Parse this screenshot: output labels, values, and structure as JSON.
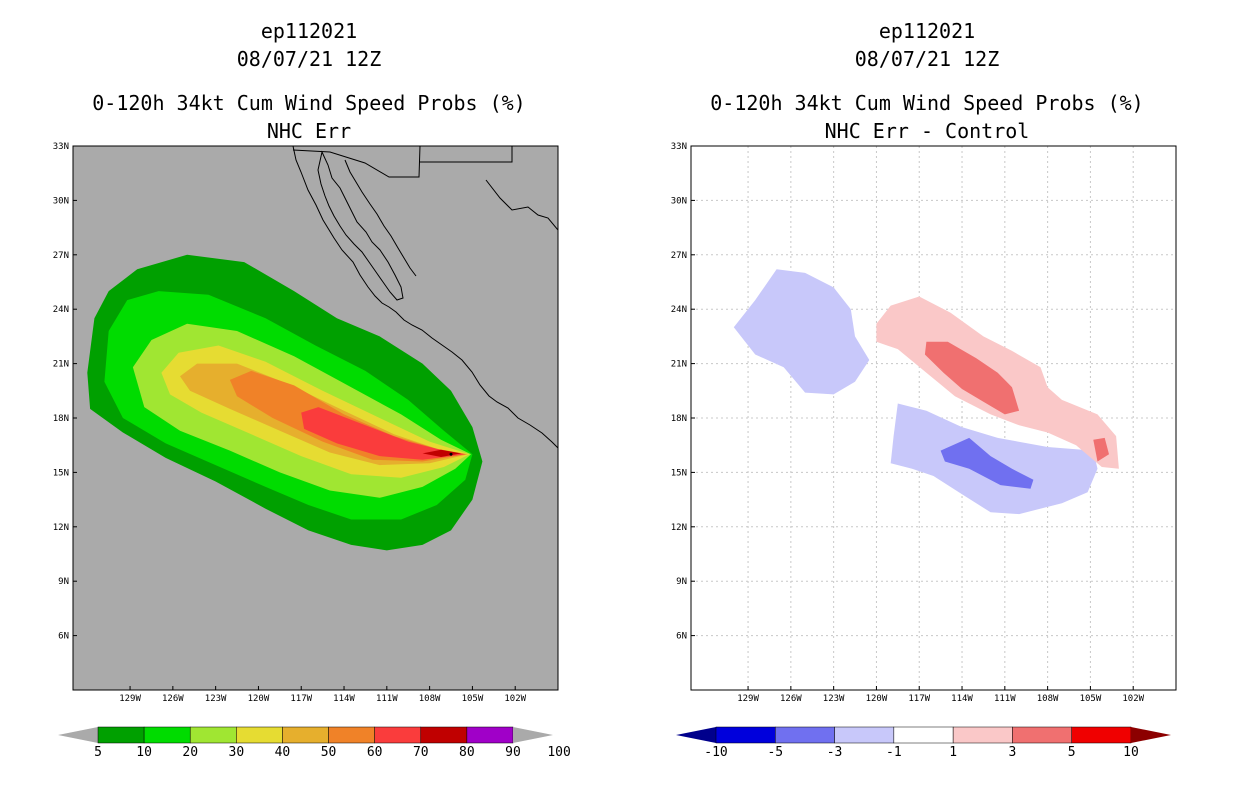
{
  "chart_data": [
    {
      "type": "heatmap",
      "storm_id": "ep112021",
      "datetime": "08/07/21 12Z",
      "title": "0-120h 34kt Cum Wind Speed Probs (%)",
      "subtitle": "NHC Err",
      "x_range_lon": [
        -133,
        -99
      ],
      "y_range_lat": [
        3,
        33
      ],
      "x_ticks": [
        "129W",
        "126W",
        "123W",
        "120W",
        "117W",
        "114W",
        "111W",
        "108W",
        "105W",
        "102W"
      ],
      "y_ticks": [
        "33N",
        "30N",
        "27N",
        "24N",
        "21N",
        "18N",
        "15N",
        "12N",
        "9N",
        "6N"
      ],
      "background_color": "#aaaaaa",
      "levels": [
        5,
        10,
        20,
        30,
        40,
        50,
        60,
        70,
        80,
        90,
        100
      ],
      "colors": [
        "#00a000",
        "#00dc00",
        "#a0e632",
        "#e6dc32",
        "#e6af2d",
        "#f08228",
        "#fa3c3c",
        "#c00000",
        "#a000c8"
      ],
      "colorbar_labels": [
        "5",
        "10",
        "20",
        "30",
        "40",
        "50",
        "60",
        "70",
        "80",
        "90",
        "100"
      ],
      "storm_center_lon": -106.5,
      "storm_center_lat": 16.0,
      "contours": [
        {
          "level": 5,
          "color": "#00a000",
          "polygon": [
            [
              -131.5,
              23.5
            ],
            [
              -130.5,
              25
            ],
            [
              -128.5,
              26.2
            ],
            [
              -125,
              27
            ],
            [
              -121,
              26.6
            ],
            [
              -117.5,
              25
            ],
            [
              -114.5,
              23.5
            ],
            [
              -111.5,
              22.5
            ],
            [
              -108.5,
              21
            ],
            [
              -106.5,
              19.5
            ],
            [
              -105,
              17.5
            ],
            [
              -104.3,
              15.6
            ],
            [
              -105,
              13.5
            ],
            [
              -106.5,
              11.8
            ],
            [
              -108.5,
              11
            ],
            [
              -111,
              10.7
            ],
            [
              -113.5,
              11
            ],
            [
              -116.5,
              11.8
            ],
            [
              -119.5,
              13
            ],
            [
              -123,
              14.5
            ],
            [
              -126.5,
              15.8
            ],
            [
              -129.5,
              17.2
            ],
            [
              -131.8,
              18.5
            ],
            [
              -132,
              20.5
            ]
          ]
        },
        {
          "level": 10,
          "color": "#00dc00",
          "polygon": [
            [
              -130.5,
              22.8
            ],
            [
              -129.2,
              24.5
            ],
            [
              -127,
              25
            ],
            [
              -123.5,
              24.8
            ],
            [
              -119.5,
              23.5
            ],
            [
              -116,
              22
            ],
            [
              -112.5,
              20.6
            ],
            [
              -109.5,
              19
            ],
            [
              -107,
              17.3
            ],
            [
              -105,
              16
            ],
            [
              -105.5,
              14.6
            ],
            [
              -107.5,
              13.2
            ],
            [
              -110,
              12.4
            ],
            [
              -113.5,
              12.4
            ],
            [
              -116.5,
              13.2
            ],
            [
              -119.5,
              14.2
            ],
            [
              -123,
              15.4
            ],
            [
              -126.5,
              16.6
            ],
            [
              -129.5,
              18
            ],
            [
              -130.8,
              20
            ]
          ]
        },
        {
          "level": 20,
          "color": "#a0e632",
          "polygon": [
            [
              -128.8,
              20.8
            ],
            [
              -127.5,
              22.3
            ],
            [
              -125,
              23.2
            ],
            [
              -121.5,
              22.8
            ],
            [
              -117.5,
              21.4
            ],
            [
              -113.5,
              19.7
            ],
            [
              -110,
              18.2
            ],
            [
              -107.2,
              16.8
            ],
            [
              -105.1,
              16
            ],
            [
              -106.2,
              15.2
            ],
            [
              -108.5,
              14.2
            ],
            [
              -111.5,
              13.6
            ],
            [
              -115,
              14
            ],
            [
              -118.5,
              15
            ],
            [
              -122,
              16.2
            ],
            [
              -125.5,
              17.3
            ],
            [
              -128,
              18.6
            ]
          ]
        },
        {
          "level": 30,
          "color": "#e6dc32",
          "polygon": [
            [
              -126.8,
              20.5
            ],
            [
              -125.6,
              21.6
            ],
            [
              -122.8,
              22
            ],
            [
              -119.5,
              21.1
            ],
            [
              -115.5,
              19.5
            ],
            [
              -111.5,
              18
            ],
            [
              -108,
              16.7
            ],
            [
              -105.2,
              16
            ],
            [
              -107,
              15.3
            ],
            [
              -110,
              14.7
            ],
            [
              -113.5,
              14.9
            ],
            [
              -117,
              15.9
            ],
            [
              -120.5,
              17.1
            ],
            [
              -124,
              18.3
            ],
            [
              -126.2,
              19.3
            ]
          ]
        },
        {
          "level": 40,
          "color": "#e6af2d",
          "polygon": [
            [
              -125.5,
              20.3
            ],
            [
              -124.3,
              21
            ],
            [
              -121.5,
              21
            ],
            [
              -118,
              19.9
            ],
            [
              -114,
              18.4
            ],
            [
              -110.5,
              17.1
            ],
            [
              -107.5,
              16.3
            ],
            [
              -105.3,
              16
            ],
            [
              -108,
              15.5
            ],
            [
              -111.5,
              15.4
            ],
            [
              -115,
              16.1
            ],
            [
              -118.5,
              17.3
            ],
            [
              -122,
              18.5
            ],
            [
              -124.8,
              19.5
            ]
          ]
        },
        {
          "level": 50,
          "color": "#f08228",
          "polygon": [
            [
              -122,
              20.1
            ],
            [
              -120.5,
              20.6
            ],
            [
              -117.5,
              19.8
            ],
            [
              -114,
              18.2
            ],
            [
              -110.5,
              17
            ],
            [
              -107.5,
              16.3
            ],
            [
              -105.4,
              16
            ],
            [
              -108.5,
              15.6
            ],
            [
              -112,
              15.7
            ],
            [
              -115.5,
              16.7
            ],
            [
              -119,
              18
            ],
            [
              -121.5,
              19.2
            ]
          ]
        },
        {
          "level": 60,
          "color": "#fa3c3c",
          "polygon": [
            [
              -117,
              18.3
            ],
            [
              -115.8,
              18.6
            ],
            [
              -112.5,
              17.6
            ],
            [
              -109.5,
              16.7
            ],
            [
              -107,
              16.2
            ],
            [
              -105.5,
              16
            ],
            [
              -108.5,
              15.7
            ],
            [
              -111.5,
              15.9
            ],
            [
              -114.5,
              16.6
            ],
            [
              -116.8,
              17.4
            ]
          ]
        },
        {
          "level": 70,
          "color": "#c00000",
          "polygon": [
            [
              -108.5,
              16.05
            ],
            [
              -107.2,
              16.25
            ],
            [
              -105.8,
              16.05
            ],
            [
              -107.2,
              15.85
            ]
          ]
        }
      ]
    },
    {
      "type": "heatmap",
      "storm_id": "ep112021",
      "datetime": "08/07/21 12Z",
      "title": "0-120h 34kt Cum Wind Speed Probs (%)",
      "subtitle": "NHC Err - Control",
      "x_range_lon": [
        -133,
        -99
      ],
      "y_range_lat": [
        3,
        33
      ],
      "x_ticks": [
        "129W",
        "126W",
        "123W",
        "120W",
        "117W",
        "114W",
        "111W",
        "108W",
        "105W",
        "102W"
      ],
      "y_ticks": [
        "33N",
        "30N",
        "27N",
        "24N",
        "21N",
        "18N",
        "15N",
        "12N",
        "9N",
        "6N"
      ],
      "background_color": "#ffffff",
      "levels": [
        -10,
        -5,
        -3,
        -1,
        1,
        3,
        5,
        10
      ],
      "colors": [
        "#00008c",
        "#0000dc",
        "#7070f0",
        "#c8c8fa",
        "#ffffff",
        "#fac8c8",
        "#f07070",
        "#f00000",
        "#8c0000"
      ],
      "colorbar_labels": [
        "-10",
        "-5",
        "-3",
        "-1",
        "1",
        "3",
        "5",
        "10"
      ],
      "contours": [
        {
          "level": -1,
          "color": "#c8c8fa",
          "polygon": [
            [
              -130,
              23
            ],
            [
              -128.5,
              24.5
            ],
            [
              -127,
              26.2
            ],
            [
              -125,
              26
            ],
            [
              -123,
              25.2
            ],
            [
              -121.8,
              24
            ],
            [
              -121.5,
              22.5
            ],
            [
              -120.5,
              21.2
            ],
            [
              -121.5,
              20
            ],
            [
              -123,
              19.3
            ],
            [
              -125,
              19.4
            ],
            [
              -126.5,
              20.8
            ],
            [
              -128.5,
              21.5
            ]
          ]
        },
        {
          "level": -1,
          "color": "#c8c8fa",
          "polygon": [
            [
              -118.5,
              18.8
            ],
            [
              -116.5,
              18.4
            ],
            [
              -114,
              17.5
            ],
            [
              -111.5,
              16.9
            ],
            [
              -108,
              16.4
            ],
            [
              -104.8,
              16.2
            ],
            [
              -104.5,
              15.2
            ],
            [
              -105.2,
              13.9
            ],
            [
              -107,
              13.3
            ],
            [
              -110,
              12.7
            ],
            [
              -112,
              12.8
            ],
            [
              -114,
              13.8
            ],
            [
              -116,
              14.8
            ],
            [
              -117.5,
              15.2
            ],
            [
              -119,
              15.5
            ],
            [
              -118.8,
              17
            ]
          ]
        },
        {
          "level": -3,
          "color": "#7070f0",
          "polygon": [
            [
              -115.5,
              16.2
            ],
            [
              -113.5,
              16.9
            ],
            [
              -112,
              15.9
            ],
            [
              -110.5,
              15.2
            ],
            [
              -109,
              14.6
            ],
            [
              -109.2,
              14.1
            ],
            [
              -111.3,
              14.3
            ],
            [
              -113.5,
              15.2
            ],
            [
              -115.2,
              15.6
            ]
          ]
        },
        {
          "level": 1,
          "color": "#fac8c8",
          "polygon": [
            [
              -120,
              23.2
            ],
            [
              -119,
              24.2
            ],
            [
              -117,
              24.7
            ],
            [
              -114.8,
              23.8
            ],
            [
              -112.5,
              22.5
            ],
            [
              -110.5,
              21.7
            ],
            [
              -108.5,
              20.8
            ],
            [
              -108,
              19.7
            ],
            [
              -107,
              19
            ],
            [
              -104.5,
              18.2
            ],
            [
              -103.2,
              17
            ],
            [
              -103,
              15.2
            ],
            [
              -104.2,
              15.3
            ],
            [
              -106,
              16.5
            ],
            [
              -108,
              17.2
            ],
            [
              -110,
              17.6
            ],
            [
              -112,
              18.2
            ],
            [
              -114.5,
              19.2
            ],
            [
              -116.5,
              20.5
            ],
            [
              -118.5,
              21.8
            ],
            [
              -120,
              22.2
            ]
          ]
        },
        {
          "level": 3,
          "color": "#f07070",
          "polygon": [
            [
              -116.5,
              22.2
            ],
            [
              -115,
              22.2
            ],
            [
              -113,
              21.3
            ],
            [
              -111.5,
              20.5
            ],
            [
              -110.5,
              19.7
            ],
            [
              -110,
              18.4
            ],
            [
              -111,
              18.2
            ],
            [
              -112.5,
              18.9
            ],
            [
              -114,
              19.6
            ],
            [
              -115.3,
              20.5
            ],
            [
              -116.6,
              21.5
            ]
          ]
        },
        {
          "level": 3,
          "color": "#f07070",
          "polygon": [
            [
              -104.8,
              16.8
            ],
            [
              -104,
              16.9
            ],
            [
              -103.7,
              16.0
            ],
            [
              -104.5,
              15.6
            ]
          ]
        }
      ]
    }
  ]
}
